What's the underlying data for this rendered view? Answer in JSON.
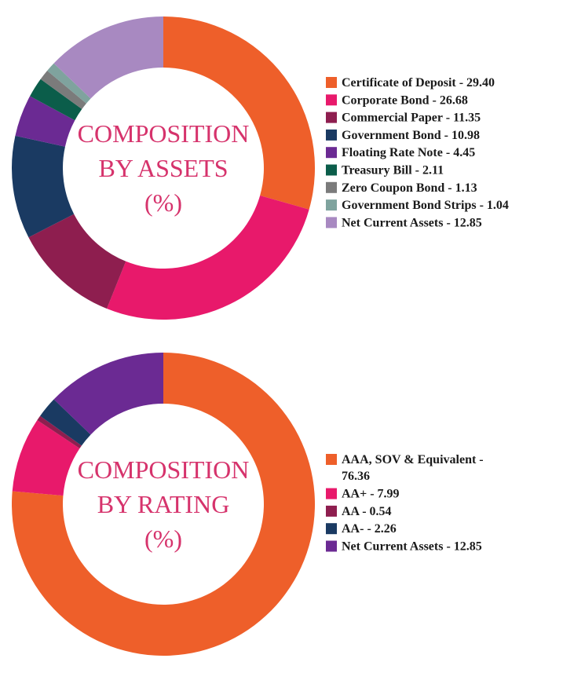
{
  "chart_data": [
    {
      "type": "pie",
      "title_lines": [
        "COMPOSITION",
        "BY ASSETS",
        "(%)"
      ],
      "series": [
        {
          "label": "Certificate of Deposit - 29.40",
          "value": 29.4,
          "color": "#ee5f2a"
        },
        {
          "label": "Corporate Bond - 26.68",
          "value": 26.68,
          "color": "#e8196b"
        },
        {
          "label": "Commercial Paper - 11.35",
          "value": 11.35,
          "color": "#8e1e4f"
        },
        {
          "label": "Government Bond - 10.98",
          "value": 10.98,
          "color": "#1a3a62"
        },
        {
          "label": "Floating Rate Note - 4.45",
          "value": 4.45,
          "color": "#6b2a93"
        },
        {
          "label": "Treasury Bill - 2.11",
          "value": 2.11,
          "color": "#0b5d4a"
        },
        {
          "label": "Zero Coupon Bond - 1.13",
          "value": 1.13,
          "color": "#7b7b7b"
        },
        {
          "label": "Government Bond Strips - 1.04",
          "value": 1.04,
          "color": "#7fa39e"
        },
        {
          "label": "Net Current Assets - 12.85",
          "value": 12.85,
          "color": "#a889c1"
        }
      ]
    },
    {
      "type": "pie",
      "title_lines": [
        "COMPOSITION",
        "BY RATING",
        "(%)"
      ],
      "series": [
        {
          "label_lines": [
            "AAA, SOV & Equivalent -",
            "76.36"
          ],
          "value": 76.36,
          "color": "#ee5f2a"
        },
        {
          "label_lines": [
            "AA+ - 7.99"
          ],
          "value": 7.99,
          "color": "#e8196b"
        },
        {
          "label_lines": [
            "AA - 0.54"
          ],
          "value": 0.54,
          "color": "#8e1e4f"
        },
        {
          "label_lines": [
            "AA- - 2.26"
          ],
          "value": 2.26,
          "color": "#1a3a62"
        },
        {
          "label_lines": [
            "Net Current Assets - 12.85"
          ],
          "value": 12.85,
          "color": "#6b2a93"
        }
      ]
    }
  ]
}
